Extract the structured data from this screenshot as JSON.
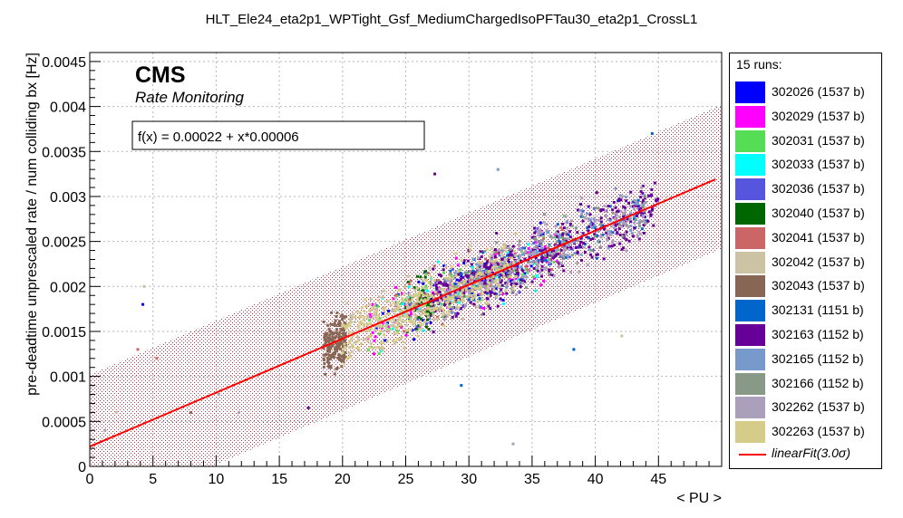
{
  "chart_data": {
    "type": "scatter",
    "title": "HLT_Ele24_eta2p1_WPTight_Gsf_MediumChargedIsoPFTau30_eta2p1_CrossL1",
    "xlabel": "< PU >",
    "ylabel": "pre-deadtime unprescaled rate / num colliding bx [Hz]",
    "xlim": [
      0,
      50
    ],
    "ylim": [
      0,
      0.0046
    ],
    "xticks": [
      "0",
      "5",
      "10",
      "15",
      "20",
      "25",
      "30",
      "35",
      "40",
      "45"
    ],
    "yticks": [
      "0",
      "0.0005",
      "0.001",
      "0.0015",
      "0.002",
      "0.0025",
      "0.003",
      "0.0035",
      "0.004",
      "0.0045"
    ],
    "grid": true,
    "legend_position": "right",
    "cms_label": "CMS",
    "cms_sublabel": "Rate Monitoring",
    "fit_text": "f(x) = 0.00022 + x*0.00006",
    "fit": {
      "intercept": 0.00022,
      "slope": 6e-05,
      "band_sigma": 3.0,
      "band_halfwidth": 0.0008,
      "color": "#ff0000"
    },
    "legend_header": "15 runs:",
    "fit_legend_label": "linearFit(3.0σ)",
    "series": [
      {
        "name": "302026 (1537 b)",
        "color": "#0000ff",
        "pu_range": [
          22,
          36
        ],
        "n": 90
      },
      {
        "name": "302029 (1537 b)",
        "color": "#ff00ff",
        "pu_range": [
          22,
          37
        ],
        "n": 90
      },
      {
        "name": "302031 (1537 b)",
        "color": "#55dd55",
        "pu_range": [
          22,
          38
        ],
        "n": 100
      },
      {
        "name": "302033 (1537 b)",
        "color": "#00ffff",
        "pu_range": [
          23,
          36
        ],
        "n": 60
      },
      {
        "name": "302036 (1537 b)",
        "color": "#5555dd",
        "pu_range": [
          24,
          40
        ],
        "n": 90
      },
      {
        "name": "302040 (1537 b)",
        "color": "#006600",
        "pu_range": [
          25,
          27
        ],
        "n": 60
      },
      {
        "name": "302041 (1537 b)",
        "color": "#cc6666",
        "pu_range": [
          24,
          38
        ],
        "n": 80
      },
      {
        "name": "302042 (1537 b)",
        "color": "#ccc2a4",
        "pu_range": [
          20,
          33
        ],
        "n": 220
      },
      {
        "name": "302043 (1537 b)",
        "color": "#886655",
        "pu_range": [
          18.5,
          20.3
        ],
        "n": 180
      },
      {
        "name": "302131 (1151 b)",
        "color": "#0066cc",
        "pu_range": [
          28,
          44
        ],
        "n": 70
      },
      {
        "name": "302163 (1152 b)",
        "color": "#660099",
        "pu_range": [
          27,
          45
        ],
        "n": 420
      },
      {
        "name": "302165 (1152 b)",
        "color": "#7799cc",
        "pu_range": [
          28,
          44
        ],
        "n": 90
      },
      {
        "name": "302166 (1152 b)",
        "color": "#889988",
        "pu_range": [
          28,
          44
        ],
        "n": 90
      },
      {
        "name": "302262 (1537 b)",
        "color": "#aaa0bb",
        "pu_range": [
          28,
          44
        ],
        "n": 200
      },
      {
        "name": "302263 (1537 b)",
        "color": "#d4cc88",
        "pu_range": [
          20,
          34
        ],
        "n": 320
      }
    ]
  }
}
